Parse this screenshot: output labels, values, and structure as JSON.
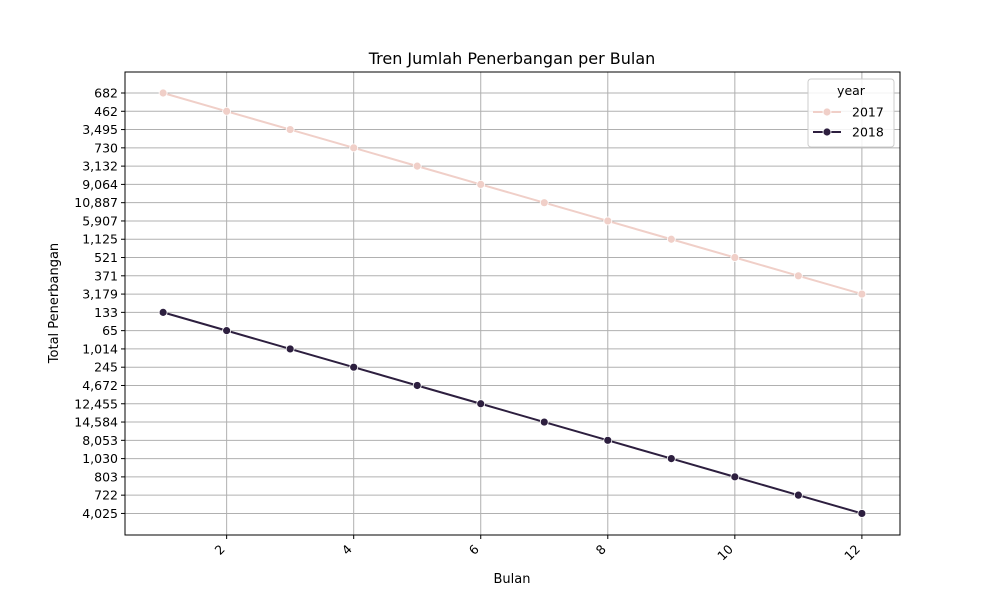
{
  "chart_data": {
    "type": "line",
    "title": "Tren Jumlah Penerbangan per Bulan",
    "xlabel": "Bulan",
    "ylabel": "Total Penerbangan",
    "x": [
      1,
      2,
      3,
      4,
      5,
      6,
      7,
      8,
      9,
      10,
      11,
      12
    ],
    "x_ticks": [
      "2",
      "4",
      "6",
      "8",
      "10",
      "12"
    ],
    "x_tick_values": [
      2,
      4,
      6,
      8,
      10,
      12
    ],
    "xlim": [
      0.4,
      12.6
    ],
    "y_axis_kind": "categorical",
    "y_categories": [
      "682",
      "462",
      "3,495",
      "730",
      "3,132",
      "9,064",
      "10,887",
      "5,907",
      "1,125",
      "521",
      "371",
      "3,179",
      "133",
      "65",
      "1,014",
      "245",
      "4,672",
      "12,455",
      "14,584",
      "8,053",
      "1,030",
      "803",
      "722",
      "4,025"
    ],
    "grid": true,
    "legend_title": "year",
    "legend_position": "top-right",
    "series": [
      {
        "name": "2017",
        "color": "#f0cfc8",
        "values": [
          "682",
          "462",
          "3,495",
          "730",
          "3,132",
          "9,064",
          "10,887",
          "5,907",
          "1,125",
          "521",
          "371",
          "3,179"
        ]
      },
      {
        "name": "2018",
        "color": "#2d1f3f",
        "values": [
          "133",
          "65",
          "1,014",
          "245",
          "4,672",
          "12,455",
          "14,584",
          "8,053",
          "1,030",
          "803",
          "722",
          "4,025"
        ]
      }
    ]
  }
}
